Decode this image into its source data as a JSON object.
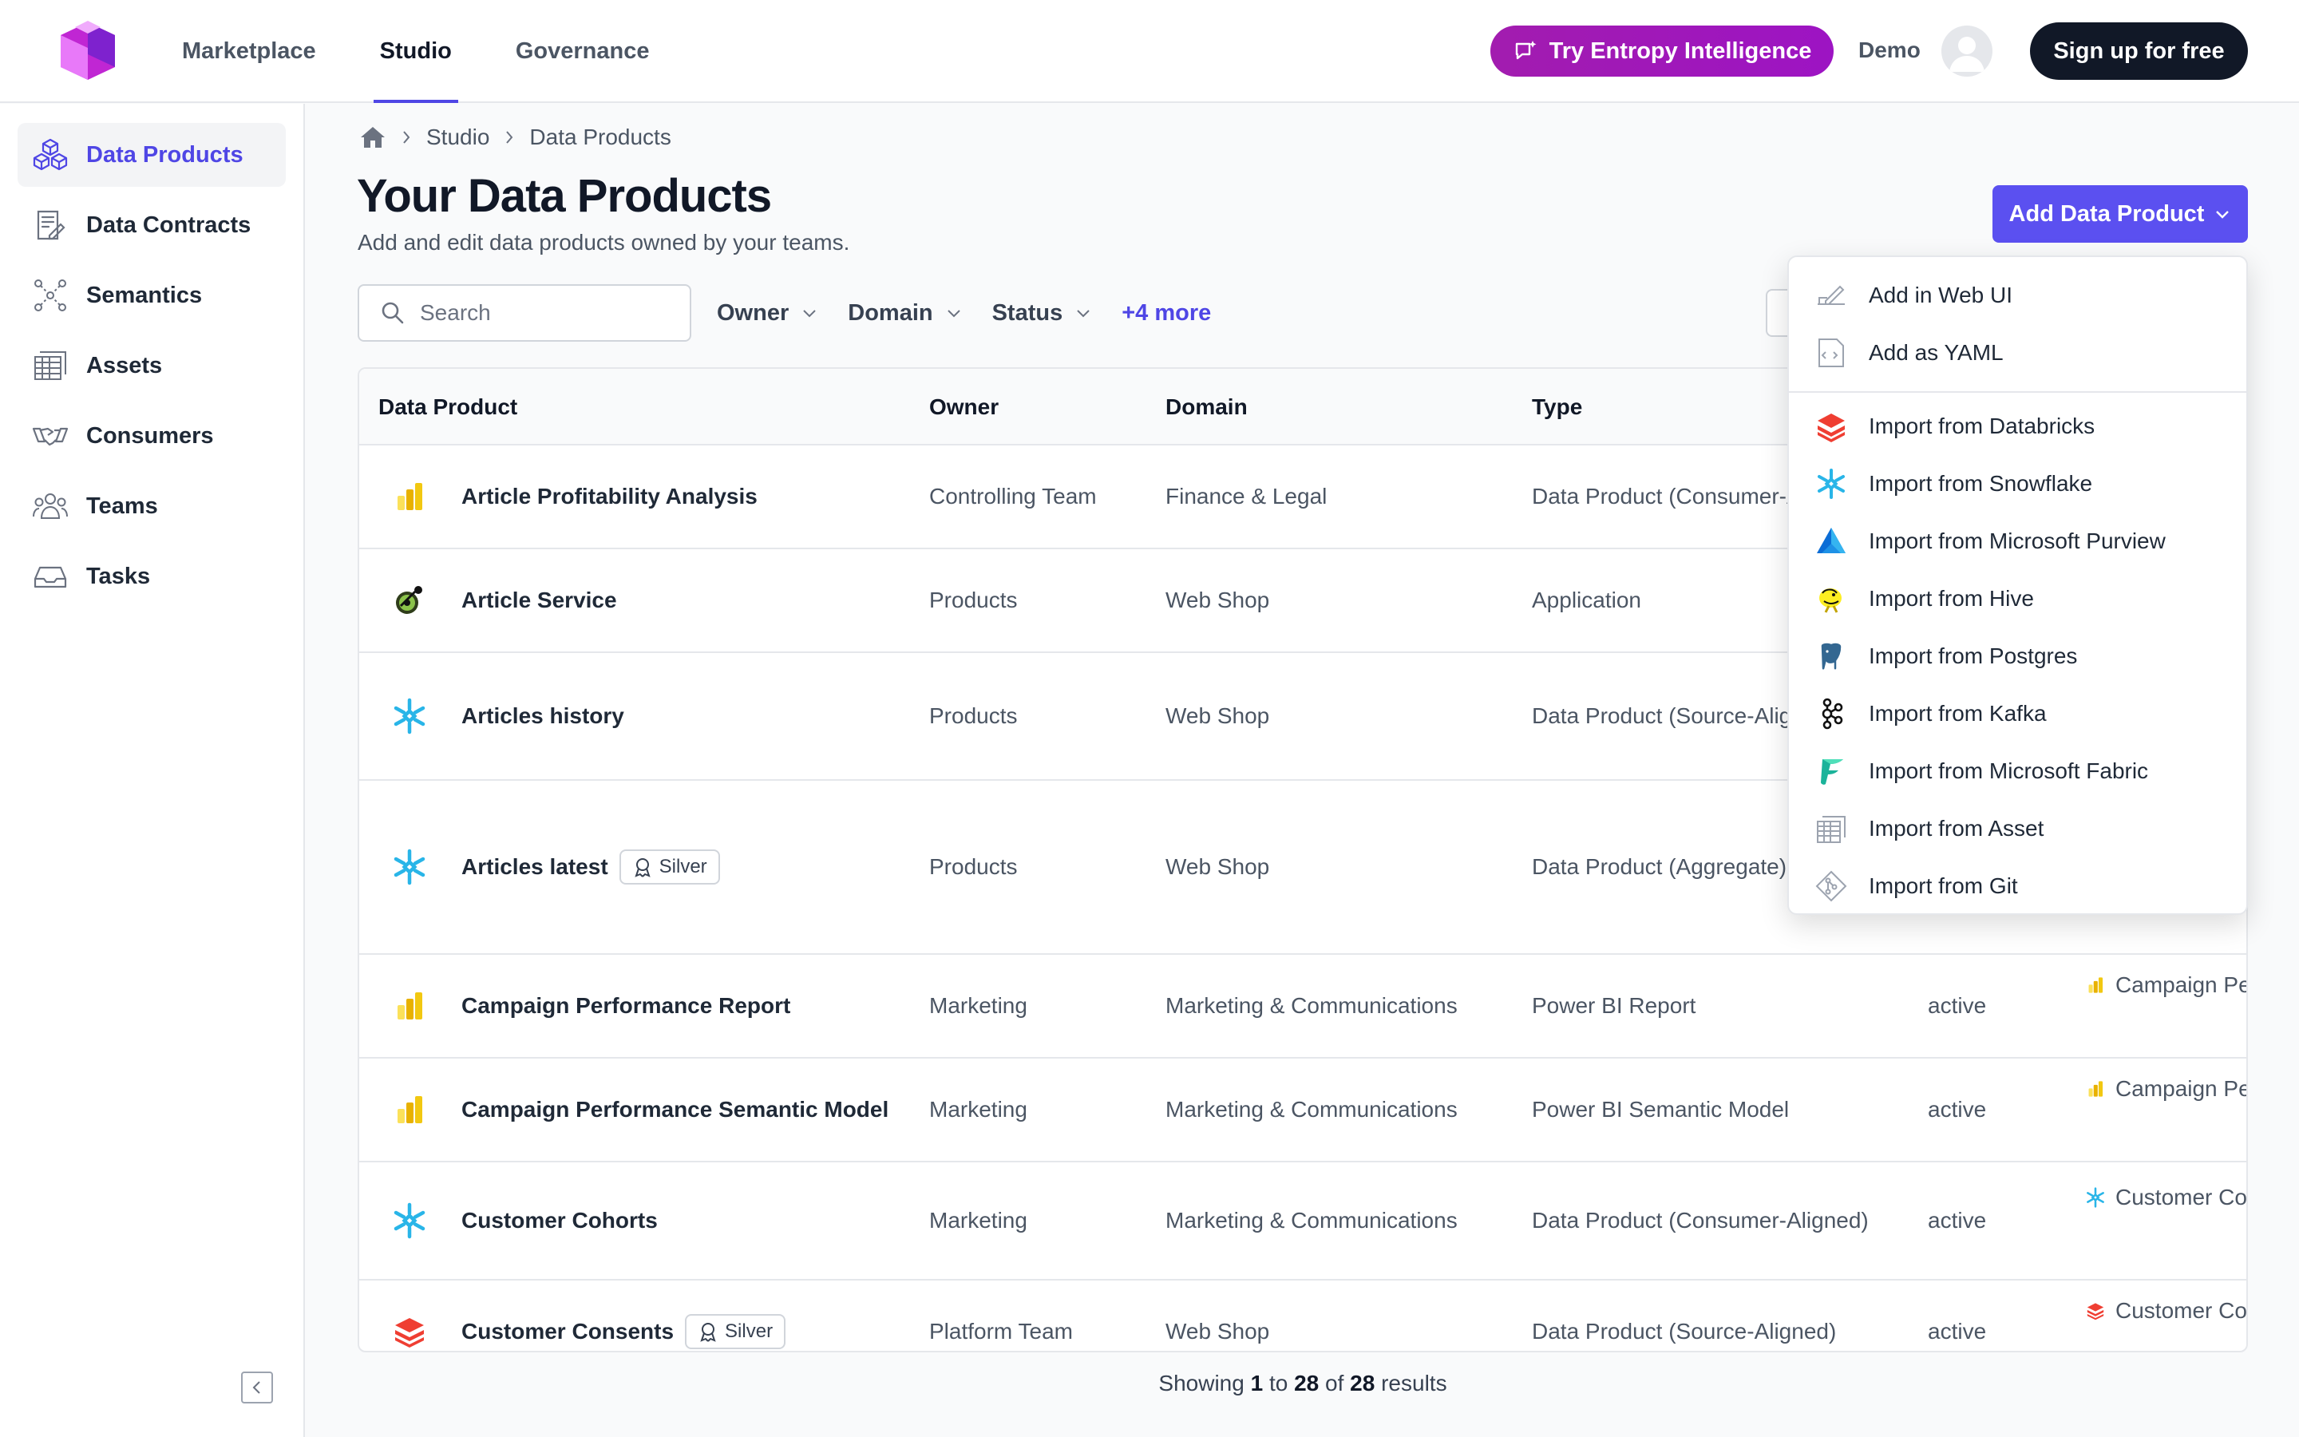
{
  "topnav": {
    "items": [
      "Marketplace",
      "Studio",
      "Governance"
    ],
    "ai_button": "Try Entropy Intelligence",
    "user_label": "Demo",
    "signup": "Sign up for free"
  },
  "sidebar": {
    "items": [
      {
        "label": "Data Products",
        "icon": "cubes-icon"
      },
      {
        "label": "Data Contracts",
        "icon": "contract-icon"
      },
      {
        "label": "Semantics",
        "icon": "graph-icon"
      },
      {
        "label": "Assets",
        "icon": "table-icon"
      },
      {
        "label": "Consumers",
        "icon": "handshake-icon"
      },
      {
        "label": "Teams",
        "icon": "people-icon"
      },
      {
        "label": "Tasks",
        "icon": "inbox-icon"
      }
    ]
  },
  "breadcrumb": [
    "Studio",
    "Data Products"
  ],
  "page": {
    "title": "Your Data Products",
    "subtitle": "Add and edit data products owned by your teams.",
    "add_button": "Add Data Product"
  },
  "search": {
    "placeholder": "Search"
  },
  "filters": [
    "Owner",
    "Domain",
    "Status"
  ],
  "more_filters": "+4 more",
  "table": {
    "columns": [
      "Data Product",
      "Owner",
      "Domain",
      "Type"
    ],
    "rows": [
      {
        "icon": "powerbi",
        "name": "Article Profitability Analysis",
        "owner": "Controlling Team",
        "domain": "Finance & Legal",
        "type": "Data Product (Consumer-Aligned)",
        "status": "",
        "linked": ""
      },
      {
        "icon": "service",
        "name": "Article Service",
        "owner": "Products",
        "domain": "Web Shop",
        "type": "Application",
        "status": "",
        "linked": ""
      },
      {
        "icon": "snowflake",
        "name": "Articles history",
        "owner": "Products",
        "domain": "Web Shop",
        "type": "Data Product (Source-Aligned)",
        "status": "",
        "linked": ""
      },
      {
        "icon": "snowflake",
        "name": "Articles latest",
        "badge": "Silver",
        "owner": "Products",
        "domain": "Web Shop",
        "type": "Data Product (Aggregate)",
        "status": "",
        "linked": ""
      },
      {
        "icon": "powerbi",
        "name": "Campaign Performance Report",
        "owner": "Marketing",
        "domain": "Marketing & Communications",
        "type": "Power BI Report",
        "status": "active",
        "linked": "Campaign Performance"
      },
      {
        "icon": "powerbi",
        "name": "Campaign Performance Semantic Model",
        "owner": "Marketing",
        "domain": "Marketing & Communications",
        "type": "Power BI Semantic Model",
        "status": "active",
        "linked": "Campaign Performance"
      },
      {
        "icon": "snowflake",
        "name": "Customer Cohorts",
        "owner": "Marketing",
        "domain": "Marketing & Communications",
        "type": "Data Product (Consumer-Aligned)",
        "status": "active",
        "linked": "Customer Cohorts"
      },
      {
        "icon": "databricks",
        "name": "Customer Consents",
        "badge": "Silver",
        "owner": "Platform Team",
        "domain": "Web Shop",
        "type": "Data Product (Source-Aligned)",
        "status": "active",
        "linked": "Customer Consents"
      }
    ]
  },
  "results": {
    "prefix": "Showing",
    "from": "1",
    "to_word": "to",
    "to": "28",
    "of_word": "of",
    "total": "28",
    "suffix": "results"
  },
  "dropdown": {
    "items": [
      {
        "label": "Add in Web UI",
        "icon": "pencil-icon"
      },
      {
        "label": "Add as YAML",
        "icon": "yaml-icon"
      },
      {
        "label": "Import from Databricks",
        "icon": "databricks-icon"
      },
      {
        "label": "Import from Snowflake",
        "icon": "snowflake-icon"
      },
      {
        "label": "Import from Microsoft Purview",
        "icon": "purview-icon"
      },
      {
        "label": "Import from Hive",
        "icon": "hive-icon"
      },
      {
        "label": "Import from Postgres",
        "icon": "postgres-icon"
      },
      {
        "label": "Import from Kafka",
        "icon": "kafka-icon"
      },
      {
        "label": "Import from Microsoft Fabric",
        "icon": "fabric-icon"
      },
      {
        "label": "Import from Asset",
        "icon": "asset-icon"
      },
      {
        "label": "Import from Git",
        "icon": "git-icon"
      }
    ]
  },
  "colors": {
    "accent": "#5b50f0",
    "ai": "#a21caf",
    "dark": "#111827"
  }
}
